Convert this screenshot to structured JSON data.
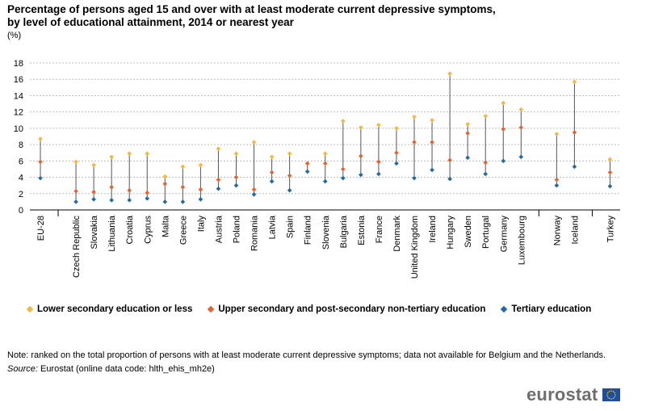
{
  "title_line1": "Percentage of persons aged 15 and over with at least moderate current depressive symptoms,",
  "title_line2": "by level of educational attainment, 2014 or nearest year",
  "unit": "(%)",
  "note": "Note: ranked on the total proportion of persons with at least moderate current depressive symptoms; data not available for Belgium and the Netherlands.",
  "source_label": "Source:",
  "source_text": " Eurostat (online data code: hlth_ehis_mh2e)",
  "logo_text": "eurostat",
  "colors": {
    "lower": "#f5b642",
    "upper": "#e8612c",
    "tertiary": "#1f6aa5",
    "grid": "#bdbdbd",
    "line": "#555555"
  },
  "chart_data": {
    "type": "scatter",
    "title": "Percentage of persons aged 15 and over with at least moderate current depressive symptoms, by level of educational attainment, 2014 or nearest year",
    "ylabel": "(%)",
    "ylim": [
      0,
      18
    ],
    "yticks": [
      0,
      2,
      4,
      6,
      8,
      10,
      12,
      14,
      16,
      18
    ],
    "grid": true,
    "legend_position": "bottom",
    "categories": [
      "EU-28",
      "Czech Republic",
      "Slovakia",
      "Lithuania",
      "Croatia",
      "Cyprus",
      "Malta",
      "Greece",
      "Italy",
      "Austria",
      "Poland",
      "Romania",
      "Latvia",
      "Spain",
      "Finland",
      "Slovenia",
      "Bulgaria",
      "Estonia",
      "France",
      "Denmark",
      "United Kingdom",
      "Ireland",
      "Hungary",
      "Sweden",
      "Portugal",
      "Germany",
      "Luxembourg",
      "Norway",
      "Iceland",
      "Turkey"
    ],
    "series": [
      {
        "name": "Lower secondary education or less",
        "key": "lower",
        "values": [
          8.7,
          5.9,
          5.5,
          6.5,
          6.9,
          6.9,
          4.1,
          5.3,
          5.5,
          7.5,
          6.9,
          8.3,
          6.5,
          6.9,
          5.7,
          6.9,
          10.9,
          10.1,
          10.4,
          10.0,
          11.4,
          11.0,
          16.7,
          10.5,
          11.5,
          13.1,
          12.3,
          9.3,
          15.7,
          6.2
        ]
      },
      {
        "name": "Upper secondary and post-secondary non-tertiary education",
        "key": "upper",
        "values": [
          5.9,
          2.3,
          2.2,
          2.8,
          2.4,
          2.1,
          3.2,
          2.8,
          2.5,
          3.7,
          4.0,
          2.5,
          4.6,
          4.2,
          5.7,
          5.7,
          5.0,
          6.6,
          5.9,
          7.0,
          8.3,
          8.3,
          6.1,
          9.4,
          5.8,
          9.9,
          10.1,
          3.7,
          9.5,
          4.6
        ]
      },
      {
        "name": "Tertiary education",
        "key": "tertiary",
        "values": [
          3.9,
          1.0,
          1.3,
          1.2,
          1.2,
          1.4,
          1.0,
          1.0,
          1.3,
          2.6,
          3.0,
          1.9,
          3.5,
          2.4,
          4.7,
          3.5,
          3.9,
          4.3,
          4.4,
          5.7,
          3.9,
          4.9,
          3.8,
          6.4,
          4.4,
          6.0,
          6.5,
          3.0,
          5.3,
          2.9
        ]
      }
    ]
  }
}
